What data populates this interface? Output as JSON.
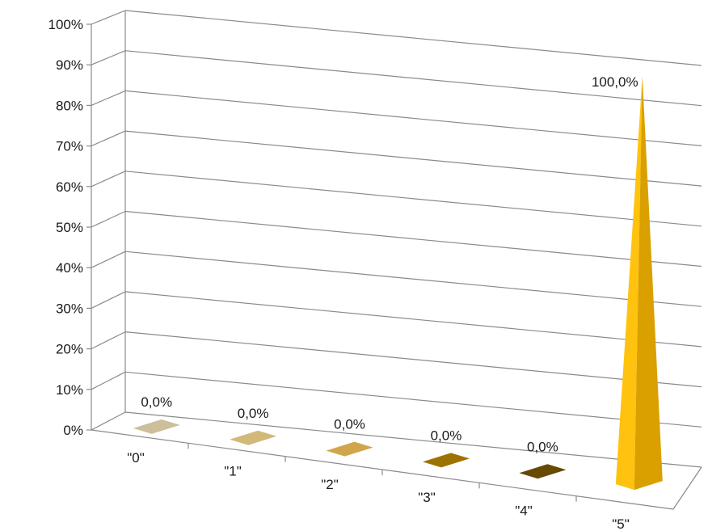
{
  "chart_data": {
    "type": "bar",
    "style": "3d-pyramid",
    "categories": [
      "\"0\"",
      "\"1\"",
      "\"2\"",
      "\"3\"",
      "\"4\"",
      "\"5\""
    ],
    "values": [
      0.0,
      0.0,
      0.0,
      0.0,
      0.0,
      100.0
    ],
    "data_labels": [
      "0,0%",
      "0,0%",
      "0,0%",
      "0,0%",
      "0,0%",
      "100,0%"
    ],
    "colors": [
      "#cdbf9c",
      "#d2b97a",
      "#cfa64c",
      "#9c7300",
      "#664a00",
      "#ffc20e"
    ],
    "ylim": [
      0,
      100
    ],
    "y_ticks": [
      0,
      10,
      20,
      30,
      40,
      50,
      60,
      70,
      80,
      90,
      100
    ],
    "y_tick_labels": [
      "0%",
      "10%",
      "20%",
      "30%",
      "40%",
      "50%",
      "60%",
      "70%",
      "80%",
      "90%",
      "100%"
    ],
    "grid": true,
    "legend": "none",
    "title": "",
    "xlabel": "",
    "ylabel": ""
  }
}
